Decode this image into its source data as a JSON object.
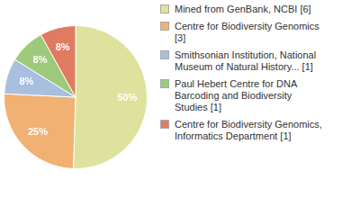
{
  "chart_data": {
    "type": "pie",
    "categories": [
      "Mined from GenBank, NCBI [6]",
      "Centre for Biodiversity Genomics [3]",
      "Smithsonian Institution, National Museum of Natural History... [1]",
      "Paul Hebert Centre for DNA Barcoding and Biodiversity Studies [1]",
      "Centre for Biodiversity Genomics, Informatics Department [1]"
    ],
    "values": [
      50,
      25,
      8,
      8,
      8
    ],
    "value_labels": [
      "50%",
      "25%",
      "8%",
      "8%",
      "8%"
    ],
    "colors": [
      "#dde39c",
      "#f0b172",
      "#a9bfe0",
      "#9dca7b",
      "#e07b62"
    ],
    "data_labels": true,
    "legend": "right"
  }
}
